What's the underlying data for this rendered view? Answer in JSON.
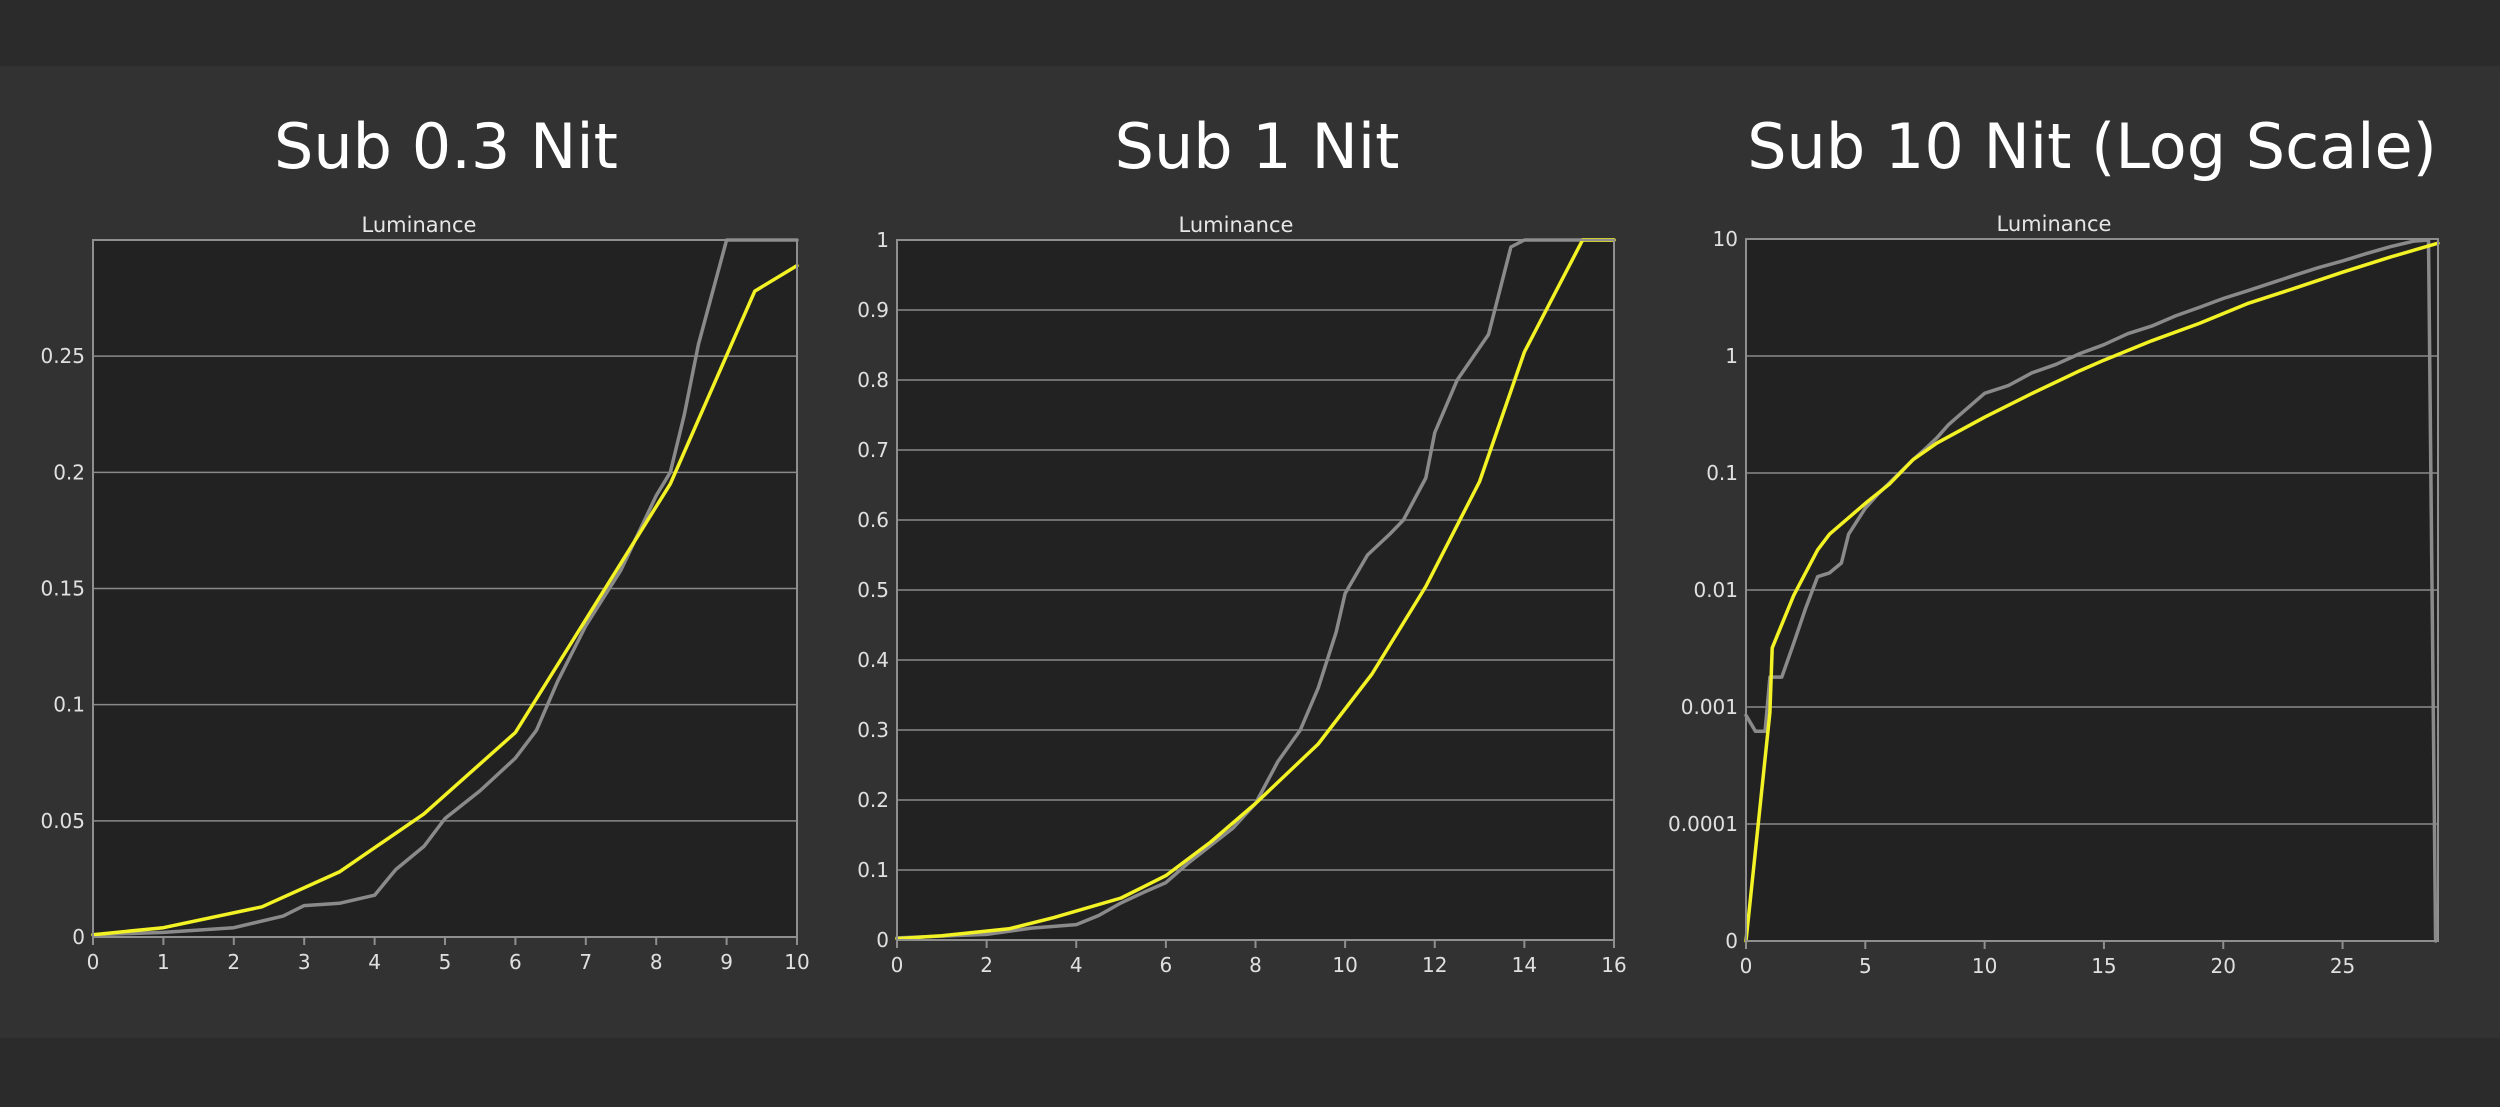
{
  "chart_data": [
    {
      "type": "line",
      "title": "Sub 0.3 Nit",
      "subtitle": "Luminance",
      "xlim": [
        0,
        10
      ],
      "ylim": [
        0,
        0.3
      ],
      "xticks": [
        0,
        1,
        2,
        3,
        4,
        5,
        6,
        7,
        8,
        9,
        10
      ],
      "xtick_labels": [
        "0",
        "1",
        "2",
        "3",
        "4",
        "5",
        "6",
        "7",
        "8",
        "9",
        "10"
      ],
      "yticks": [
        0,
        0.05,
        0.1,
        0.15,
        0.2,
        0.25
      ],
      "ytick_labels": [
        "0",
        "0.05",
        "0.1",
        "0.15",
        "0.2",
        "0.25"
      ],
      "y_scale": "linear",
      "grid": true,
      "series": [
        {
          "color": "#8a8a8a",
          "points": [
            [
              0,
              0.001
            ],
            [
              1,
              0.002
            ],
            [
              2,
              0.004
            ],
            [
              2.7,
              0.009
            ],
            [
              3,
              0.0135
            ],
            [
              3.5,
              0.0145
            ],
            [
              4,
              0.018
            ],
            [
              4.3,
              0.029
            ],
            [
              4.7,
              0.039
            ],
            [
              5,
              0.051
            ],
            [
              5.5,
              0.063
            ],
            [
              6,
              0.077
            ],
            [
              6.3,
              0.089
            ],
            [
              6.6,
              0.11
            ],
            [
              7,
              0.134
            ],
            [
              7.5,
              0.158
            ],
            [
              8,
              0.19
            ],
            [
              8.2,
              0.2
            ],
            [
              8.4,
              0.225
            ],
            [
              8.6,
              0.255
            ],
            [
              9,
              0.3
            ],
            [
              10,
              0.3
            ]
          ]
        },
        {
          "color": "#f2f225",
          "points": [
            [
              0,
              0.001
            ],
            [
              1,
              0.004
            ],
            [
              2.4,
              0.013
            ],
            [
              3.5,
              0.028
            ],
            [
              4.7,
              0.053
            ],
            [
              6,
              0.088
            ],
            [
              8.2,
              0.195
            ],
            [
              9.4,
              0.278
            ],
            [
              10,
              0.289
            ]
          ]
        }
      ]
    },
    {
      "type": "line",
      "title": "Sub 1 Nit",
      "subtitle": "Luminance",
      "xlim": [
        0,
        16
      ],
      "ylim": [
        0,
        1
      ],
      "xticks": [
        0,
        2,
        4,
        6,
        8,
        10,
        12,
        14,
        16
      ],
      "xtick_labels": [
        "0",
        "2",
        "4",
        "6",
        "8",
        "10",
        "12",
        "14",
        "16"
      ],
      "yticks": [
        0,
        0.1,
        0.2,
        0.3,
        0.4,
        0.5,
        0.6,
        0.7,
        0.8,
        0.9,
        1
      ],
      "ytick_labels": [
        "0",
        "0.1",
        "0.2",
        "0.3",
        "0.4",
        "0.5",
        "0.6",
        "0.7",
        "0.8",
        "0.9",
        "1"
      ],
      "y_scale": "linear",
      "grid": true,
      "series": [
        {
          "color": "#8a8a8a",
          "points": [
            [
              0,
              0.003
            ],
            [
              2,
              0.008
            ],
            [
              3,
              0.017
            ],
            [
              4,
              0.022
            ],
            [
              4.5,
              0.035
            ],
            [
              5,
              0.053
            ],
            [
              5.5,
              0.068
            ],
            [
              6,
              0.082
            ],
            [
              6.5,
              0.11
            ],
            [
              7,
              0.135
            ],
            [
              7.5,
              0.16
            ],
            [
              8,
              0.195
            ],
            [
              8.5,
              0.255
            ],
            [
              9,
              0.3
            ],
            [
              9.4,
              0.36
            ],
            [
              9.8,
              0.44
            ],
            [
              10,
              0.495
            ],
            [
              10.5,
              0.55
            ],
            [
              11,
              0.58
            ],
            [
              11.3,
              0.6
            ],
            [
              11.8,
              0.66
            ],
            [
              12,
              0.725
            ],
            [
              12.5,
              0.8
            ],
            [
              13.2,
              0.865
            ],
            [
              13.7,
              0.99
            ],
            [
              14,
              1
            ],
            [
              16,
              1
            ]
          ]
        },
        {
          "color": "#f2f225",
          "points": [
            [
              0,
              0.002
            ],
            [
              1,
              0.006
            ],
            [
              2.5,
              0.016
            ],
            [
              3.5,
              0.032
            ],
            [
              5,
              0.06
            ],
            [
              6,
              0.092
            ],
            [
              7,
              0.14
            ],
            [
              8,
              0.195
            ],
            [
              9.4,
              0.28
            ],
            [
              10.6,
              0.38
            ],
            [
              11.8,
              0.505
            ],
            [
              13,
              0.655
            ],
            [
              14,
              0.84
            ],
            [
              15.3,
              1
            ],
            [
              16,
              1
            ]
          ]
        }
      ]
    },
    {
      "type": "line",
      "title": "Sub 10 Nit (Log Scale)",
      "subtitle": "Luminance",
      "xlim": [
        0,
        29
      ],
      "ylim": [
        0,
        10
      ],
      "xticks": [
        0,
        5,
        10,
        15,
        20,
        25
      ],
      "xtick_labels": [
        "0",
        "5",
        "10",
        "15",
        "20",
        "25"
      ],
      "yticks": [
        0,
        0.0001,
        0.001,
        0.01,
        0.1,
        1,
        10
      ],
      "ytick_labels": [
        "0",
        "0.0001",
        "0.001",
        "0.01",
        "0.1",
        "1",
        "10"
      ],
      "y_scale": "log",
      "grid": true,
      "series": [
        {
          "color": "#8a8a8a",
          "points": [
            [
              0,
              0.00085
            ],
            [
              0.4,
              0.00062
            ],
            [
              0.8,
              0.00062
            ],
            [
              1,
              0.0018
            ],
            [
              1.5,
              0.0018
            ],
            [
              2,
              0.0035
            ],
            [
              2.5,
              0.007
            ],
            [
              3,
              0.013
            ],
            [
              3.5,
              0.014
            ],
            [
              4,
              0.017
            ],
            [
              4.3,
              0.03
            ],
            [
              5,
              0.05
            ],
            [
              5.5,
              0.065
            ],
            [
              6,
              0.082
            ],
            [
              7,
              0.13
            ],
            [
              7.5,
              0.16
            ],
            [
              8,
              0.2
            ],
            [
              8.5,
              0.26
            ],
            [
              9,
              0.32
            ],
            [
              10,
              0.48
            ],
            [
              11,
              0.56
            ],
            [
              12,
              0.72
            ],
            [
              13,
              0.85
            ],
            [
              14,
              1.05
            ],
            [
              15,
              1.25
            ],
            [
              16,
              1.55
            ],
            [
              17,
              1.8
            ],
            [
              18,
              2.2
            ],
            [
              19,
              2.6
            ],
            [
              20,
              3.1
            ],
            [
              21,
              3.6
            ],
            [
              22,
              4.2
            ],
            [
              23,
              4.9
            ],
            [
              24,
              5.7
            ],
            [
              25,
              6.5
            ],
            [
              26,
              7.5
            ],
            [
              27,
              8.6
            ],
            [
              28,
              9.6
            ],
            [
              28.6,
              9.8
            ],
            [
              28.9,
              2e-07
            ]
          ]
        },
        {
          "color": "#f2f225",
          "points": [
            [
              0,
              1e-07
            ],
            [
              1,
              0.0009
            ],
            [
              1.1,
              0.0032
            ],
            [
              2,
              0.009
            ],
            [
              3,
              0.022
            ],
            [
              3.5,
              0.03
            ],
            [
              5,
              0.055
            ],
            [
              6,
              0.08
            ],
            [
              7,
              0.13
            ],
            [
              8,
              0.18
            ],
            [
              10,
              0.3
            ],
            [
              12,
              0.48
            ],
            [
              14,
              0.75
            ],
            [
              15,
              0.92
            ],
            [
              17,
              1.35
            ],
            [
              19,
              1.9
            ],
            [
              21,
              2.8
            ],
            [
              23,
              3.8
            ],
            [
              25,
              5.2
            ],
            [
              27,
              7
            ],
            [
              29,
              9.2
            ]
          ]
        }
      ]
    }
  ]
}
